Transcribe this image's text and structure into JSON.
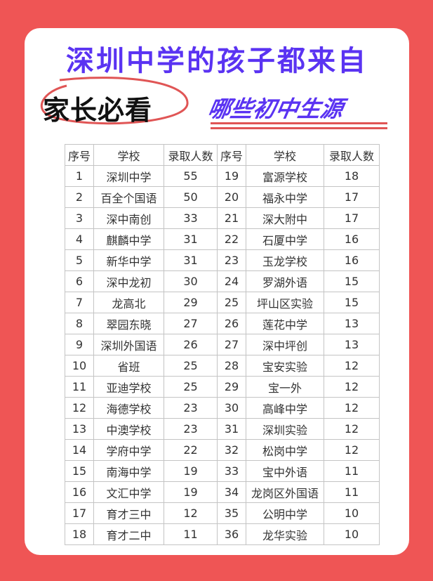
{
  "title": "深圳中学的孩子都来自",
  "tag": "家长必看",
  "subtitle": "哪些初中生源",
  "colors": {
    "background": "#ef5555",
    "accent": "#5a33f2",
    "circle": "#e05555"
  },
  "table": {
    "headers": [
      "序号",
      "学校",
      "录取人数",
      "序号",
      "学校",
      "录取人数"
    ],
    "rows": [
      [
        "1",
        "深圳中学",
        "55",
        "19",
        "富源学校",
        "18"
      ],
      [
        "2",
        "百全个国语",
        "50",
        "20",
        "福永中学",
        "17"
      ],
      [
        "3",
        "深中南创",
        "33",
        "21",
        "深大附中",
        "17"
      ],
      [
        "4",
        "麒麟中学",
        "31",
        "22",
        "石厦中学",
        "16"
      ],
      [
        "5",
        "新华中学",
        "31",
        "23",
        "玉龙学校",
        "16"
      ],
      [
        "6",
        "深中龙初",
        "30",
        "24",
        "罗湖外语",
        "15"
      ],
      [
        "7",
        "龙高北",
        "29",
        "25",
        "坪山区实验",
        "15"
      ],
      [
        "8",
        "翠园东晓",
        "27",
        "26",
        "莲花中学",
        "13"
      ],
      [
        "9",
        "深圳外国语",
        "26",
        "27",
        "深中坪创",
        "13"
      ],
      [
        "10",
        "省班",
        "25",
        "28",
        "宝安实验",
        "12"
      ],
      [
        "11",
        "亚迪学校",
        "25",
        "29",
        "宝一外",
        "12"
      ],
      [
        "12",
        "海德学校",
        "23",
        "30",
        "高峰中学",
        "12"
      ],
      [
        "13",
        "中澳学校",
        "23",
        "31",
        "深圳实验",
        "12"
      ],
      [
        "14",
        "学府中学",
        "22",
        "32",
        "松岗中学",
        "12"
      ],
      [
        "15",
        "南海中学",
        "19",
        "33",
        "宝中外语",
        "11"
      ],
      [
        "16",
        "文汇中学",
        "19",
        "34",
        "龙岗区外国语",
        "11"
      ],
      [
        "17",
        "育才三中",
        "12",
        "35",
        "公明中学",
        "10"
      ],
      [
        "18",
        "育才二中",
        "11",
        "36",
        "龙华实验",
        "10"
      ]
    ]
  }
}
